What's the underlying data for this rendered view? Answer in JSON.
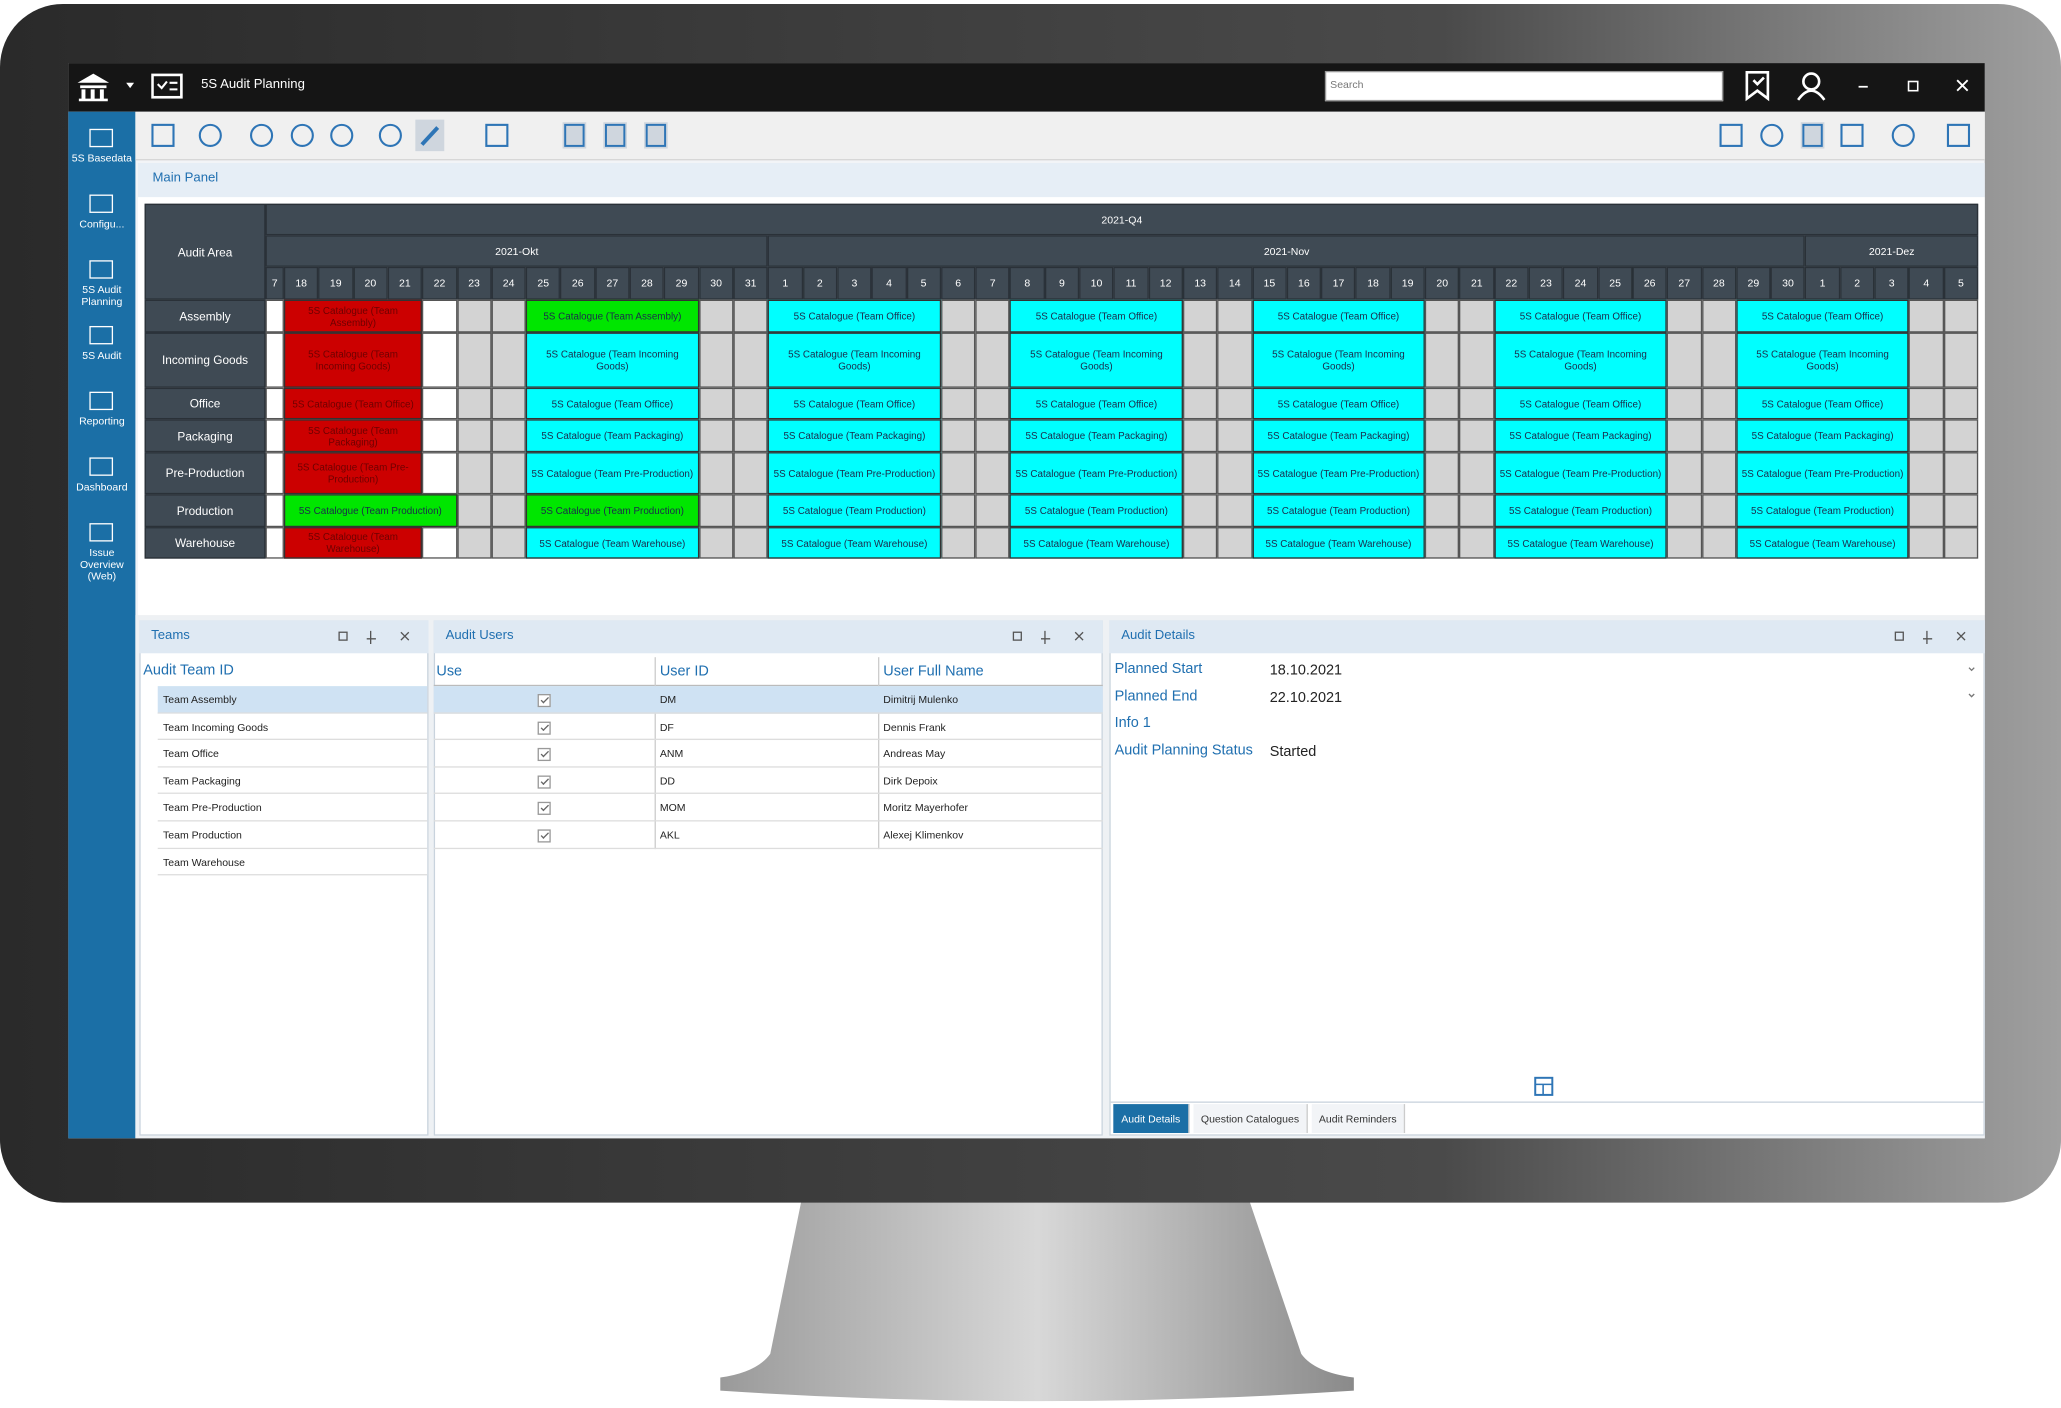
{
  "app": {
    "title": "5S Audit Planning",
    "search_placeholder": "Search"
  },
  "sidebar": [
    "5S Basedata",
    "Configu...",
    "5S Audit Planning",
    "5S Audit",
    "Reporting",
    "Dashboard",
    "Issue Overview (Web)"
  ],
  "main_panel": {
    "title": "Main Panel",
    "schedule": {
      "corner": "Audit Area",
      "quarter": "2021-Q4",
      "months": [
        {
          "label": "2021-Okt",
          "start": 0
        },
        {
          "label": "2021-Nov",
          "start": 15
        },
        {
          "label": "2021-Dez",
          "start": 45
        }
      ],
      "days": [
        "7",
        "18",
        "19",
        "20",
        "21",
        "22",
        "23",
        "24",
        "25",
        "26",
        "27",
        "28",
        "29",
        "30",
        "31",
        "1",
        "2",
        "3",
        "4",
        "5",
        "6",
        "7",
        "8",
        "9",
        "10",
        "11",
        "12",
        "13",
        "14",
        "15",
        "16",
        "17",
        "18",
        "19",
        "20",
        "21",
        "22",
        "23",
        "24",
        "25",
        "26",
        "27",
        "28",
        "29",
        "30",
        "1",
        "2",
        "3",
        "4",
        "5"
      ],
      "weekend": [
        6,
        7,
        13,
        14,
        20,
        21,
        27,
        28,
        34,
        35,
        41,
        42,
        48,
        49
      ],
      "rows": [
        {
          "area": "Assembly",
          "events": [
            {
              "start": 1,
              "span": 4,
              "label": "5S Catalogue (Team Assembly)",
              "color": "#cc0000"
            },
            {
              "start": 8,
              "span": 5,
              "label": "5S Catalogue (Team Assembly)",
              "color": "#00e600"
            },
            {
              "start": 15,
              "span": 5,
              "label": "5S Catalogue (Team Office)",
              "color": "#00ffff"
            },
            {
              "start": 22,
              "span": 5,
              "label": "5S Catalogue (Team Office)",
              "color": "#00ffff"
            },
            {
              "start": 29,
              "span": 5,
              "label": "5S Catalogue (Team Office)",
              "color": "#00ffff"
            },
            {
              "start": 36,
              "span": 5,
              "label": "5S Catalogue (Team Office)",
              "color": "#00ffff"
            },
            {
              "start": 43,
              "span": 5,
              "label": "5S Catalogue (Team Office)",
              "color": "#00ffff"
            }
          ]
        },
        {
          "area": "Incoming Goods",
          "events": [
            {
              "start": 1,
              "span": 4,
              "label": "5S Catalogue (Team Incoming Goods)",
              "color": "#cc0000"
            },
            {
              "start": 8,
              "span": 5,
              "label": "5S Catalogue (Team Incoming Goods)",
              "color": "#00ffff"
            },
            {
              "start": 15,
              "span": 5,
              "label": "5S Catalogue (Team Incoming Goods)",
              "color": "#00ffff"
            },
            {
              "start": 22,
              "span": 5,
              "label": "5S Catalogue (Team Incoming Goods)",
              "color": "#00ffff"
            },
            {
              "start": 29,
              "span": 5,
              "label": "5S Catalogue (Team Incoming Goods)",
              "color": "#00ffff"
            },
            {
              "start": 36,
              "span": 5,
              "label": "5S Catalogue (Team Incoming Goods)",
              "color": "#00ffff"
            },
            {
              "start": 43,
              "span": 5,
              "label": "5S Catalogue (Team Incoming Goods)",
              "color": "#00ffff"
            }
          ]
        },
        {
          "area": "Office",
          "events": [
            {
              "start": 1,
              "span": 4,
              "label": "5S Catalogue (Team Office)",
              "color": "#cc0000"
            },
            {
              "start": 8,
              "span": 5,
              "label": "5S Catalogue (Team Office)",
              "color": "#00ffff"
            },
            {
              "start": 15,
              "span": 5,
              "label": "5S Catalogue (Team Office)",
              "color": "#00ffff"
            },
            {
              "start": 22,
              "span": 5,
              "label": "5S Catalogue (Team Office)",
              "color": "#00ffff"
            },
            {
              "start": 29,
              "span": 5,
              "label": "5S Catalogue (Team Office)",
              "color": "#00ffff"
            },
            {
              "start": 36,
              "span": 5,
              "label": "5S Catalogue (Team Office)",
              "color": "#00ffff"
            },
            {
              "start": 43,
              "span": 5,
              "label": "5S Catalogue (Team Office)",
              "color": "#00ffff"
            }
          ]
        },
        {
          "area": "Packaging",
          "events": [
            {
              "start": 1,
              "span": 4,
              "label": "5S Catalogue (Team Packaging)",
              "color": "#cc0000"
            },
            {
              "start": 8,
              "span": 5,
              "label": "5S Catalogue (Team Packaging)",
              "color": "#00ffff"
            },
            {
              "start": 15,
              "span": 5,
              "label": "5S Catalogue (Team Packaging)",
              "color": "#00ffff"
            },
            {
              "start": 22,
              "span": 5,
              "label": "5S Catalogue (Team Packaging)",
              "color": "#00ffff"
            },
            {
              "start": 29,
              "span": 5,
              "label": "5S Catalogue (Team Packaging)",
              "color": "#00ffff"
            },
            {
              "start": 36,
              "span": 5,
              "label": "5S Catalogue (Team Packaging)",
              "color": "#00ffff"
            },
            {
              "start": 43,
              "span": 5,
              "label": "5S Catalogue (Team Packaging)",
              "color": "#00ffff"
            }
          ]
        },
        {
          "area": "Pre-Production",
          "events": [
            {
              "start": 1,
              "span": 4,
              "label": "5S Catalogue (Team Pre-Production)",
              "color": "#cc0000"
            },
            {
              "start": 8,
              "span": 5,
              "label": "5S Catalogue (Team Pre-Production)",
              "color": "#00ffff"
            },
            {
              "start": 15,
              "span": 5,
              "label": "5S Catalogue (Team Pre-Production)",
              "color": "#00ffff"
            },
            {
              "start": 22,
              "span": 5,
              "label": "5S Catalogue (Team Pre-Production)",
              "color": "#00ffff"
            },
            {
              "start": 29,
              "span": 5,
              "label": "5S Catalogue (Team Pre-Production)",
              "color": "#00ffff"
            },
            {
              "start": 36,
              "span": 5,
              "label": "5S Catalogue (Team Pre-Production)",
              "color": "#00ffff"
            },
            {
              "start": 43,
              "span": 5,
              "label": "5S Catalogue (Team Pre-Production)",
              "color": "#00ffff"
            }
          ]
        },
        {
          "area": "Production",
          "events": [
            {
              "start": 1,
              "span": 5,
              "label": "5S Catalogue (Team Production)",
              "color": "#00e600"
            },
            {
              "start": 8,
              "span": 5,
              "label": "5S Catalogue (Team Production)",
              "color": "#00e600"
            },
            {
              "start": 15,
              "span": 5,
              "label": "5S Catalogue (Team Production)",
              "color": "#00ffff"
            },
            {
              "start": 22,
              "span": 5,
              "label": "5S Catalogue (Team Production)",
              "color": "#00ffff"
            },
            {
              "start": 29,
              "span": 5,
              "label": "5S Catalogue (Team Production)",
              "color": "#00ffff"
            },
            {
              "start": 36,
              "span": 5,
              "label": "5S Catalogue (Team Production)",
              "color": "#00ffff"
            },
            {
              "start": 43,
              "span": 5,
              "label": "5S Catalogue (Team Production)",
              "color": "#00ffff"
            }
          ]
        },
        {
          "area": "Warehouse",
          "events": [
            {
              "start": 1,
              "span": 4,
              "label": "5S Catalogue (Team Warehouse)",
              "color": "#cc0000"
            },
            {
              "start": 8,
              "span": 5,
              "label": "5S Catalogue (Team Warehouse)",
              "color": "#00ffff"
            },
            {
              "start": 15,
              "span": 5,
              "label": "5S Catalogue (Team Warehouse)",
              "color": "#00ffff"
            },
            {
              "start": 22,
              "span": 5,
              "label": "5S Catalogue (Team Warehouse)",
              "color": "#00ffff"
            },
            {
              "start": 29,
              "span": 5,
              "label": "5S Catalogue (Team Warehouse)",
              "color": "#00ffff"
            },
            {
              "start": 36,
              "span": 5,
              "label": "5S Catalogue (Team Warehouse)",
              "color": "#00ffff"
            },
            {
              "start": 43,
              "span": 5,
              "label": "5S Catalogue (Team Warehouse)",
              "color": "#00ffff"
            }
          ]
        }
      ]
    }
  },
  "teams": {
    "title": "Teams",
    "column": "Audit Team ID",
    "rows": [
      "Team Assembly",
      "Team Incoming Goods",
      "Team Office",
      "Team Packaging",
      "Team Pre-Production",
      "Team Production",
      "Team Warehouse"
    ]
  },
  "audit_users": {
    "title": "Audit Users",
    "columns": [
      "Use",
      "User ID",
      "User Full Name"
    ],
    "rows": [
      {
        "checked": true,
        "id": "DM",
        "name": "Dimitrij Mulenko"
      },
      {
        "checked": true,
        "id": "DF",
        "name": "Dennis Frank"
      },
      {
        "checked": true,
        "id": "ANM",
        "name": "Andreas May"
      },
      {
        "checked": true,
        "id": "DD",
        "name": "Dirk Depoix"
      },
      {
        "checked": true,
        "id": "MOM",
        "name": "Moritz Mayerhofer"
      },
      {
        "checked": true,
        "id": "AKL",
        "name": "Alexej Klimenkov"
      }
    ]
  },
  "audit_details": {
    "title": "Audit Details",
    "fields": [
      {
        "label": "Planned Start",
        "value": "18.10.2021"
      },
      {
        "label": "Planned End",
        "value": "22.10.2021"
      },
      {
        "label": "Info 1"
      },
      {
        "label": "Audit Planning Status",
        "value": "Started"
      }
    ],
    "tabs": [
      "Audit Details",
      "Question Catalogues",
      "Audit Reminders"
    ],
    "active_tab": 0
  }
}
